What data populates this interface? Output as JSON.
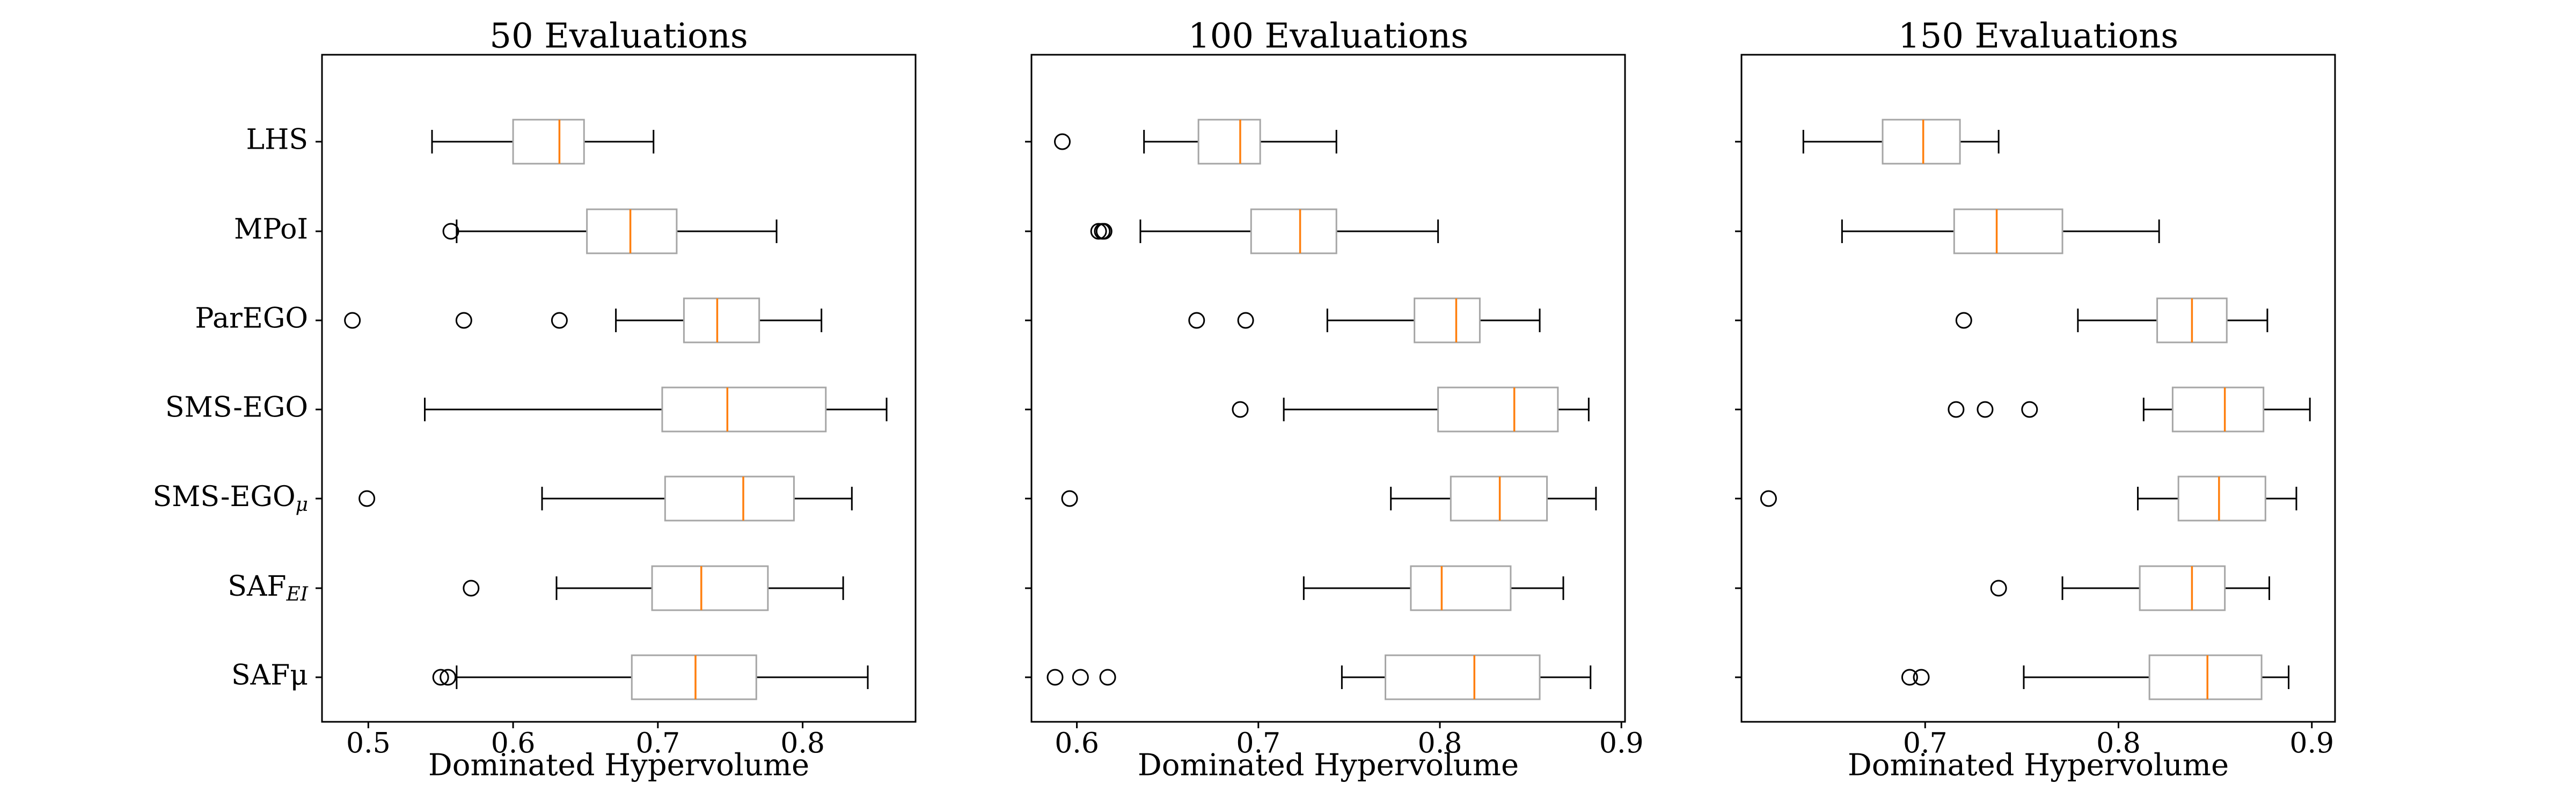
{
  "chart_data": [
    {
      "type": "box",
      "title": "50 Evaluations",
      "xlabel": "Dominated Hypervolume",
      "xlim": [
        0.468,
        0.878
      ],
      "xticks": [
        0.5,
        0.6,
        0.7,
        0.8
      ],
      "categories": [
        "LHS",
        "MPoI",
        "ParEGO",
        "SMS-EGO",
        "SMS-EGOμ",
        "SAFEI",
        "SAFμ"
      ],
      "boxes": [
        {
          "whislo": 0.544,
          "q1": 0.6,
          "med": 0.632,
          "q3": 0.649,
          "whishi": 0.697,
          "fliers": []
        },
        {
          "whislo": 0.561,
          "q1": 0.651,
          "med": 0.681,
          "q3": 0.713,
          "whishi": 0.782,
          "fliers": [
            0.557
          ]
        },
        {
          "whislo": 0.671,
          "q1": 0.718,
          "med": 0.741,
          "q3": 0.77,
          "whishi": 0.813,
          "fliers": [
            0.489,
            0.566,
            0.632
          ]
        },
        {
          "whislo": 0.539,
          "q1": 0.703,
          "med": 0.748,
          "q3": 0.816,
          "whishi": 0.858,
          "fliers": []
        },
        {
          "whislo": 0.62,
          "q1": 0.705,
          "med": 0.759,
          "q3": 0.794,
          "whishi": 0.834,
          "fliers": [
            0.499
          ]
        },
        {
          "whislo": 0.63,
          "q1": 0.696,
          "med": 0.73,
          "q3": 0.776,
          "whishi": 0.828,
          "fliers": [
            0.571
          ]
        },
        {
          "whislo": 0.561,
          "q1": 0.682,
          "med": 0.726,
          "q3": 0.768,
          "whishi": 0.845,
          "fliers": [
            0.55,
            0.555
          ]
        }
      ]
    },
    {
      "type": "box",
      "title": "100 Evaluations",
      "xlabel": "Dominated Hypervolume",
      "xlim": [
        0.575,
        0.902
      ],
      "xticks": [
        0.6,
        0.7,
        0.8,
        0.9
      ],
      "categories": [
        "LHS",
        "MPoI",
        "ParEGO",
        "SMS-EGO",
        "SMS-EGOμ",
        "SAFEI",
        "SAFμ"
      ],
      "boxes": [
        {
          "whislo": 0.637,
          "q1": 0.667,
          "med": 0.69,
          "q3": 0.701,
          "whishi": 0.743,
          "fliers": [
            0.592
          ]
        },
        {
          "whislo": 0.635,
          "q1": 0.696,
          "med": 0.723,
          "q3": 0.743,
          "whishi": 0.799,
          "fliers": [
            0.612,
            0.614,
            0.615
          ]
        },
        {
          "whislo": 0.738,
          "q1": 0.786,
          "med": 0.809,
          "q3": 0.822,
          "whishi": 0.855,
          "fliers": [
            0.666,
            0.693
          ]
        },
        {
          "whislo": 0.714,
          "q1": 0.799,
          "med": 0.841,
          "q3": 0.865,
          "whishi": 0.882,
          "fliers": [
            0.69
          ]
        },
        {
          "whislo": 0.773,
          "q1": 0.806,
          "med": 0.833,
          "q3": 0.859,
          "whishi": 0.886,
          "fliers": [
            0.596
          ]
        },
        {
          "whislo": 0.725,
          "q1": 0.784,
          "med": 0.801,
          "q3": 0.839,
          "whishi": 0.868,
          "fliers": []
        },
        {
          "whislo": 0.746,
          "q1": 0.77,
          "med": 0.819,
          "q3": 0.855,
          "whishi": 0.883,
          "fliers": [
            0.588,
            0.602,
            0.617
          ]
        }
      ]
    },
    {
      "type": "box",
      "title": "150 Evaluations",
      "xlabel": "Dominated Hypervolume",
      "xlim": [
        0.605,
        0.912
      ],
      "xticks": [
        0.7,
        0.8,
        0.9
      ],
      "categories": [
        "LHS",
        "MPoI",
        "ParEGO",
        "SMS-EGO",
        "SMS-EGOμ",
        "SAFEI",
        "SAFμ"
      ],
      "boxes": [
        {
          "whislo": 0.637,
          "q1": 0.678,
          "med": 0.699,
          "q3": 0.718,
          "whishi": 0.738,
          "fliers": []
        },
        {
          "whislo": 0.657,
          "q1": 0.715,
          "med": 0.737,
          "q3": 0.771,
          "whishi": 0.821,
          "fliers": []
        },
        {
          "whislo": 0.779,
          "q1": 0.82,
          "med": 0.838,
          "q3": 0.856,
          "whishi": 0.877,
          "fliers": [
            0.72
          ]
        },
        {
          "whislo": 0.813,
          "q1": 0.828,
          "med": 0.855,
          "q3": 0.875,
          "whishi": 0.899,
          "fliers": [
            0.716,
            0.731,
            0.754
          ]
        },
        {
          "whislo": 0.81,
          "q1": 0.831,
          "med": 0.852,
          "q3": 0.876,
          "whishi": 0.892,
          "fliers": [
            0.619
          ]
        },
        {
          "whislo": 0.771,
          "q1": 0.811,
          "med": 0.838,
          "q3": 0.855,
          "whishi": 0.878,
          "fliers": [
            0.738
          ]
        },
        {
          "whislo": 0.751,
          "q1": 0.816,
          "med": 0.846,
          "q3": 0.874,
          "whishi": 0.888,
          "fliers": [
            0.692,
            0.698
          ]
        }
      ]
    }
  ],
  "style": {
    "box_edge_color": "#a6a6a6",
    "median_color": "#ff7f0e",
    "whisker_color": "#000000"
  }
}
